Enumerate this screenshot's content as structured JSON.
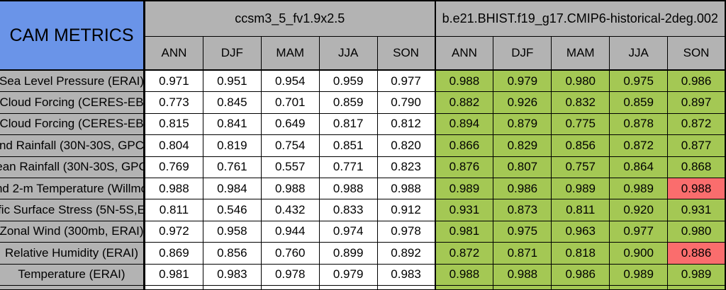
{
  "colors": {
    "header_blue": "#6a94e8",
    "cell_gray": "#b3b3b3",
    "good_green": "#a4c854",
    "bad_red": "#fa6d6d",
    "model1_bg": "#ffffff",
    "border": "#000000"
  },
  "chart_data": {
    "type": "table",
    "title": "CAM METRICS",
    "models": [
      {
        "name": "ccsm3_5_fv1.9x2.5",
        "seasons": [
          "ANN",
          "DJF",
          "MAM",
          "JJA",
          "SON"
        ]
      },
      {
        "name": "b.e21.BHIST.f19_g17.CMIP6-historical-2deg.002",
        "seasons": [
          "ANN",
          "DJF",
          "MAM",
          "JJA",
          "SON"
        ]
      }
    ],
    "legend": {
      "green_means": "model2 cell highlighted green",
      "red_means": "model2 cell highlighted red"
    },
    "rows": [
      {
        "label": "Sea Level Pressure (ERAI)",
        "model1_values": [
          "0.971",
          "0.951",
          "0.954",
          "0.959",
          "0.977"
        ],
        "model2_values": [
          "0.988",
          "0.979",
          "0.980",
          "0.975",
          "0.986"
        ],
        "model2_cell_colors": [
          "green",
          "green",
          "green",
          "green",
          "green"
        ]
      },
      {
        "label": "Cloud Forcing (CERES-EB",
        "model1_values": [
          "0.773",
          "0.845",
          "0.701",
          "0.859",
          "0.790"
        ],
        "model2_values": [
          "0.882",
          "0.926",
          "0.832",
          "0.859",
          "0.897"
        ],
        "model2_cell_colors": [
          "green",
          "green",
          "green",
          "green",
          "green"
        ]
      },
      {
        "label": "Cloud Forcing (CERES-EB",
        "model1_values": [
          "0.815",
          "0.841",
          "0.649",
          "0.817",
          "0.812"
        ],
        "model2_values": [
          "0.894",
          "0.879",
          "0.775",
          "0.878",
          "0.872"
        ],
        "model2_cell_colors": [
          "green",
          "green",
          "green",
          "green",
          "green"
        ]
      },
      {
        "label": "nd Rainfall (30N-30S, GPC",
        "model1_values": [
          "0.804",
          "0.819",
          "0.754",
          "0.851",
          "0.820"
        ],
        "model2_values": [
          "0.866",
          "0.829",
          "0.856",
          "0.872",
          "0.877"
        ],
        "model2_cell_colors": [
          "green",
          "green",
          "green",
          "green",
          "green"
        ]
      },
      {
        "label": "ean Rainfall (30N-30S, GPC",
        "model1_values": [
          "0.769",
          "0.761",
          "0.557",
          "0.771",
          "0.823"
        ],
        "model2_values": [
          "0.876",
          "0.807",
          "0.757",
          "0.864",
          "0.868"
        ],
        "model2_cell_colors": [
          "green",
          "green",
          "green",
          "green",
          "green"
        ]
      },
      {
        "label": "nd 2-m Temperature (Willmo",
        "model1_values": [
          "0.988",
          "0.984",
          "0.988",
          "0.988",
          "0.988"
        ],
        "model2_values": [
          "0.989",
          "0.986",
          "0.989",
          "0.989",
          "0.988"
        ],
        "model2_cell_colors": [
          "green",
          "green",
          "green",
          "green",
          "red"
        ]
      },
      {
        "label": "fic Surface Stress (5N-5S,E",
        "model1_values": [
          "0.811",
          "0.546",
          "0.432",
          "0.833",
          "0.912"
        ],
        "model2_values": [
          "0.931",
          "0.873",
          "0.811",
          "0.920",
          "0.931"
        ],
        "model2_cell_colors": [
          "green",
          "green",
          "green",
          "green",
          "green"
        ]
      },
      {
        "label": "Zonal Wind (300mb, ERAI)",
        "model1_values": [
          "0.972",
          "0.958",
          "0.944",
          "0.974",
          "0.978"
        ],
        "model2_values": [
          "0.981",
          "0.975",
          "0.963",
          "0.977",
          "0.980"
        ],
        "model2_cell_colors": [
          "green",
          "green",
          "green",
          "green",
          "green"
        ]
      },
      {
        "label": "Relative Humidity (ERAI)",
        "model1_values": [
          "0.869",
          "0.856",
          "0.760",
          "0.899",
          "0.892"
        ],
        "model2_values": [
          "0.872",
          "0.871",
          "0.818",
          "0.900",
          "0.886"
        ],
        "model2_cell_colors": [
          "green",
          "green",
          "green",
          "green",
          "red"
        ]
      },
      {
        "label": "Temperature (ERAI)",
        "model1_values": [
          "0.981",
          "0.983",
          "0.978",
          "0.979",
          "0.983"
        ],
        "model2_values": [
          "0.988",
          "0.988",
          "0.986",
          "0.989",
          "0.989"
        ],
        "model2_cell_colors": [
          "green",
          "green",
          "green",
          "green",
          "green"
        ]
      }
    ]
  }
}
